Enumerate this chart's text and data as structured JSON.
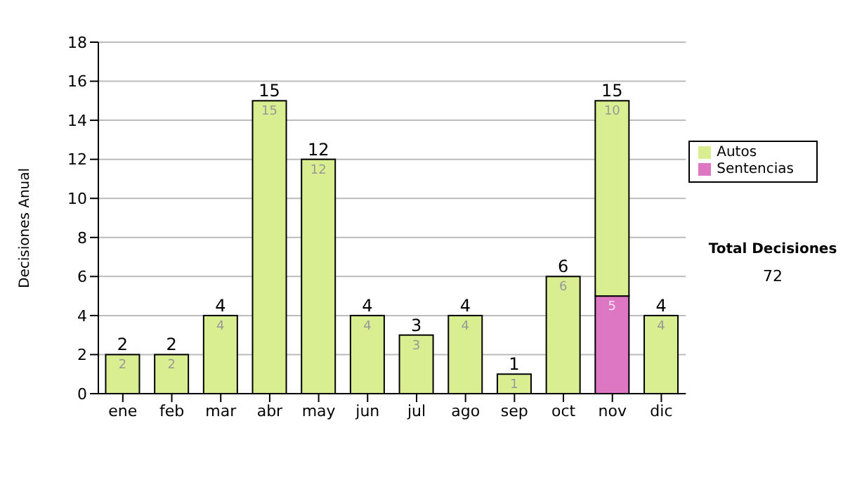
{
  "chart_data": {
    "type": "bar",
    "stacked": true,
    "ylabel": "Decisiones Anual",
    "categories": [
      "ene",
      "feb",
      "mar",
      "abr",
      "may",
      "jun",
      "jul",
      "ago",
      "sep",
      "oct",
      "nov",
      "dic"
    ],
    "series": [
      {
        "name": "Sentencias",
        "color": "#dd77c4",
        "values": [
          0,
          0,
          0,
          0,
          0,
          0,
          0,
          0,
          0,
          0,
          5,
          0
        ],
        "value_labels": [
          null,
          null,
          null,
          null,
          null,
          null,
          null,
          null,
          null,
          null,
          "5",
          null
        ]
      },
      {
        "name": "Autos",
        "color": "#d8ee91",
        "values": [
          2,
          2,
          4,
          15,
          12,
          4,
          3,
          4,
          1,
          6,
          10,
          4
        ],
        "value_labels": [
          "2",
          "2",
          "4",
          "15",
          "12",
          "4",
          "3",
          "4",
          "1",
          "6",
          "10",
          "4"
        ]
      }
    ],
    "totals": [
      "2",
      "2",
      "4",
      "15",
      "12",
      "4",
      "3",
      "4",
      "1",
      "6",
      "15",
      "4"
    ],
    "ylim": [
      0,
      18
    ],
    "yticks": [
      0,
      2,
      4,
      6,
      8,
      10,
      12,
      14,
      16,
      18
    ],
    "grid": "y",
    "legend": "right",
    "annotations": [
      "Total Decisiones",
      "72"
    ]
  }
}
